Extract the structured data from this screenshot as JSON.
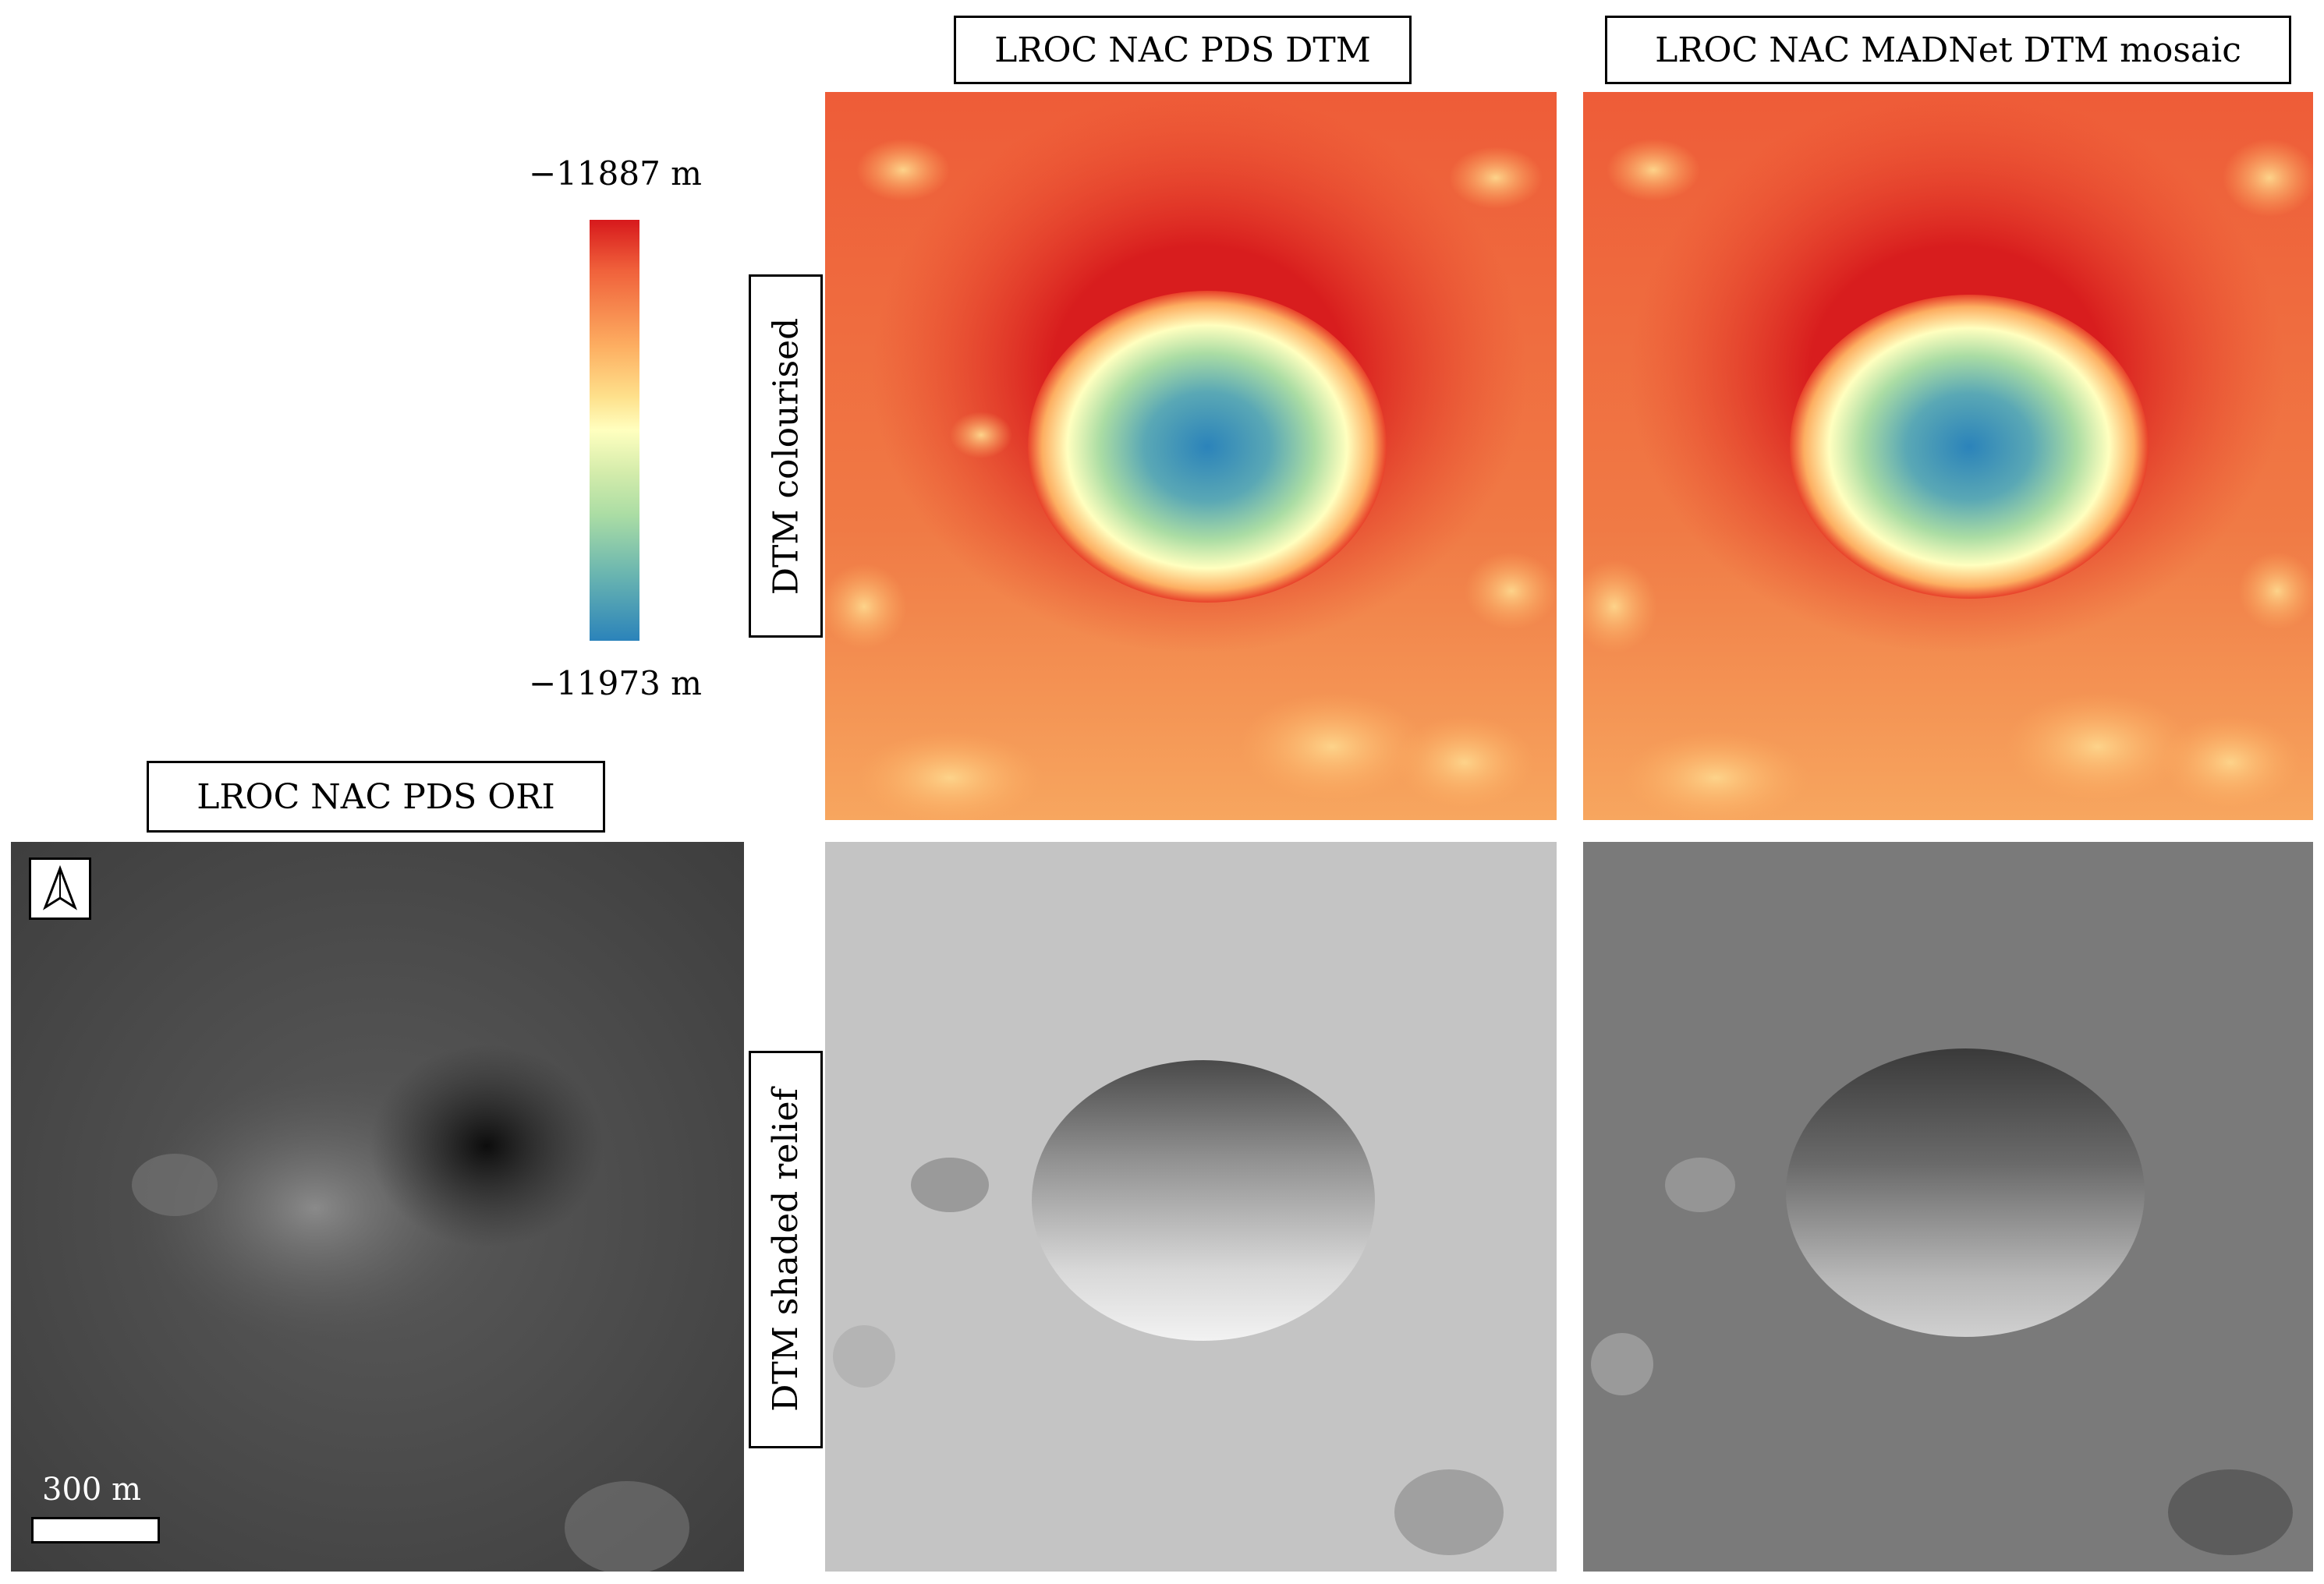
{
  "titles": {
    "pds_dtm": "LROC NAC PDS DTM",
    "madnet_dtm": "LROC NAC MADNet DTM mosaic",
    "pds_ori": "LROC NAC PDS ORI"
  },
  "row_labels": {
    "colourised": "DTM colourised",
    "shaded": "DTM shaded relief"
  },
  "colorbar": {
    "max_label": "−11887 m",
    "min_label": "−11973 m",
    "colors": [
      "#d7191c",
      "#fdae61",
      "#ffffbf",
      "#abdda4",
      "#2b83ba"
    ]
  },
  "scalebar": {
    "label": "300 m"
  },
  "icons": {
    "north_arrow": "north-arrow-icon"
  }
}
